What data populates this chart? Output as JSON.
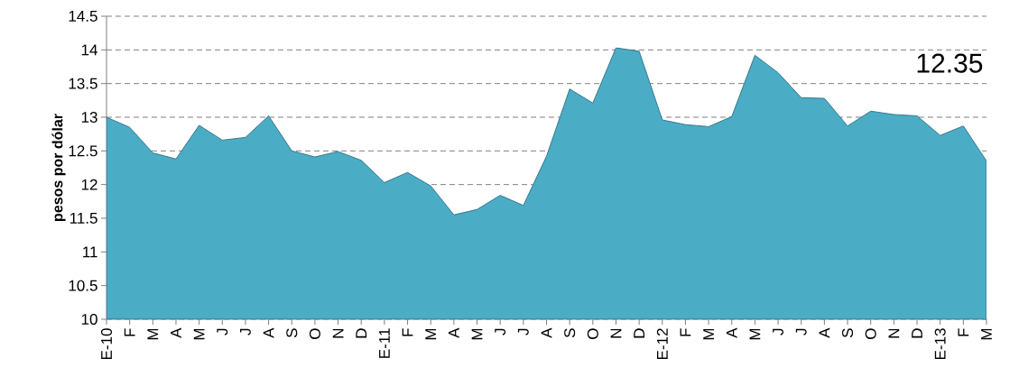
{
  "chart_data": {
    "type": "area",
    "ylabel": "pesos por dólar",
    "categories": [
      "E-10",
      "F",
      "M",
      "A",
      "M",
      "J",
      "J",
      "A",
      "S",
      "O",
      "N",
      "D",
      "E-11",
      "F",
      "M",
      "A",
      "M",
      "J",
      "J",
      "A",
      "S",
      "O",
      "N",
      "D",
      "E-12",
      "F",
      "M",
      "A",
      "M",
      "J",
      "J",
      "A",
      "S",
      "O",
      "N",
      "D",
      "E-13",
      "F",
      "M"
    ],
    "values": [
      13.0,
      12.85,
      12.47,
      12.38,
      12.88,
      12.66,
      12.7,
      13.02,
      12.5,
      12.41,
      12.49,
      12.36,
      12.03,
      12.18,
      11.98,
      11.55,
      11.63,
      11.84,
      11.69,
      12.42,
      13.42,
      13.21,
      14.03,
      13.98,
      12.96,
      12.89,
      12.86,
      13.01,
      13.92,
      13.66,
      13.29,
      13.28,
      12.87,
      13.09,
      13.04,
      13.02,
      12.73,
      12.87,
      12.35
    ],
    "color": "#4bacc6",
    "ylim": [
      10,
      14.5
    ],
    "yticks": [
      10,
      10.5,
      11,
      11.5,
      12,
      12.5,
      13,
      13.5,
      14,
      14.5
    ],
    "grid": "y",
    "annotations": [
      "12.35"
    ]
  }
}
